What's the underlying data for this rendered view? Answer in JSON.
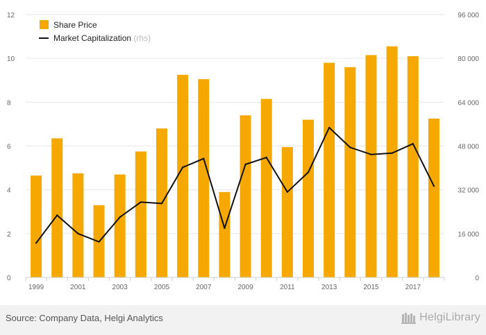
{
  "chart_data": {
    "type": "bar+line",
    "categories": [
      "1999",
      "2000",
      "2001",
      "2002",
      "2003",
      "2004",
      "2005",
      "2006",
      "2007",
      "2008",
      "2009",
      "2010",
      "2011",
      "2012",
      "2013",
      "2014",
      "2015",
      "2016",
      "2017",
      "2018"
    ],
    "x_tick_labels": [
      "1999",
      "2001",
      "2003",
      "2005",
      "2007",
      "2009",
      "2011",
      "2013",
      "2015",
      "2017"
    ],
    "series": [
      {
        "name": "Share Price",
        "type": "bar",
        "axis": "left",
        "color": "#F5A800",
        "values": [
          4.65,
          6.35,
          4.75,
          3.3,
          4.7,
          5.75,
          6.8,
          9.25,
          9.05,
          3.9,
          7.4,
          8.15,
          5.95,
          7.2,
          9.8,
          9.6,
          10.15,
          10.55,
          10.1,
          7.25
        ]
      },
      {
        "name": "Market Capitalization",
        "type": "line",
        "axis": "right",
        "color": "#111111",
        "values": [
          12600,
          22700,
          16000,
          13000,
          22000,
          27500,
          27000,
          40200,
          43400,
          18000,
          41300,
          43800,
          31200,
          38400,
          54700,
          47500,
          44900,
          45400,
          48800,
          33400
        ]
      }
    ],
    "y_left": {
      "min": 0,
      "max": 12,
      "ticks": [
        "0",
        "2",
        "4",
        "6",
        "8",
        "10",
        "12"
      ]
    },
    "y_right": {
      "min": 0,
      "max": 96000,
      "ticks": [
        "0",
        "16 000",
        "32 000",
        "48 000",
        "64 000",
        "80 000",
        "96 000"
      ]
    },
    "legend": {
      "position": "top-left",
      "entries": [
        "Share Price",
        "Market Capitalization"
      ],
      "rhs_suffix": "(rhs)"
    },
    "grid": true
  },
  "footer": {
    "source": "Source: Company Data, Helgi Analytics",
    "brand": "HelgiLibrary"
  },
  "colors": {
    "bar": "#F5A800",
    "line": "#111111",
    "grid": "#e6e6e6",
    "footer_bg": "#f2f2f2"
  }
}
